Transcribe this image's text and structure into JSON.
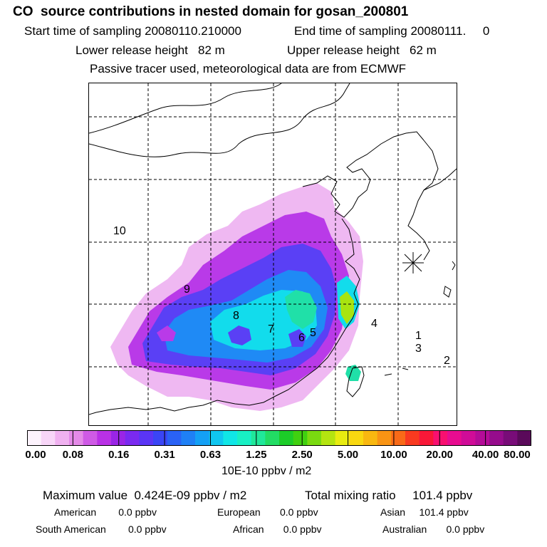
{
  "header": {
    "title": "CO  source contributions in nested domain for gosan_200801",
    "start_label": "Start time of sampling 20080110.210000",
    "end_label": "End time of sampling 20080111.     0",
    "lower_label": "Lower release height   82 m",
    "upper_label": "Upper release height   62 m",
    "tracer_line": "Passive tracer used, meteorological data are from ECMWF"
  },
  "map": {
    "region_labels": [
      "1",
      "2",
      "3",
      "4",
      "5",
      "6",
      "7",
      "8",
      "9",
      "10"
    ],
    "receptor_marker": "asterisk-icon"
  },
  "colorbar": {
    "ticks": [
      "0.00",
      "0.08",
      "0.16",
      "0.31",
      "0.63",
      "1.25",
      "2.50",
      "5.00",
      "10.00",
      "20.00",
      "40.00",
      "80.00"
    ],
    "colors": [
      "#fdf3fd",
      "#f8d6f8",
      "#f0b1f0",
      "#e48ae8",
      "#cf5ae6",
      "#b931e6",
      "#9a25e6",
      "#7a2af0",
      "#5a35f5",
      "#3a45f5",
      "#2a62f5",
      "#1f80f5",
      "#14a0f5",
      "#10c6f0",
      "#10e6e6",
      "#18f0c4",
      "#20e89a",
      "#22dc64",
      "#1ccc28",
      "#40d010",
      "#7ada10",
      "#b4e410",
      "#e8ec10",
      "#f8d810",
      "#f8b810",
      "#f89414",
      "#f86a18",
      "#f83a20",
      "#f81838",
      "#f81070",
      "#e80c90",
      "#d00c98",
      "#b40c98",
      "#960c8c",
      "#780c78",
      "#5a0a5a"
    ],
    "units": "10E-10 ppbv / m2"
  },
  "stats": {
    "maximum": "Maximum value  0.424E-09 ppbv / m2",
    "total": "Total mixing ratio     101.4 ppbv",
    "american": "American        0.0 ppbv",
    "european": "European       0.0 ppbv",
    "asian": "Asian     101.4 ppbv",
    "south_american": "South American        0.0 ppbv",
    "african": "African       0.0 ppbv",
    "australian": "Australian       0.0 ppbv"
  }
}
